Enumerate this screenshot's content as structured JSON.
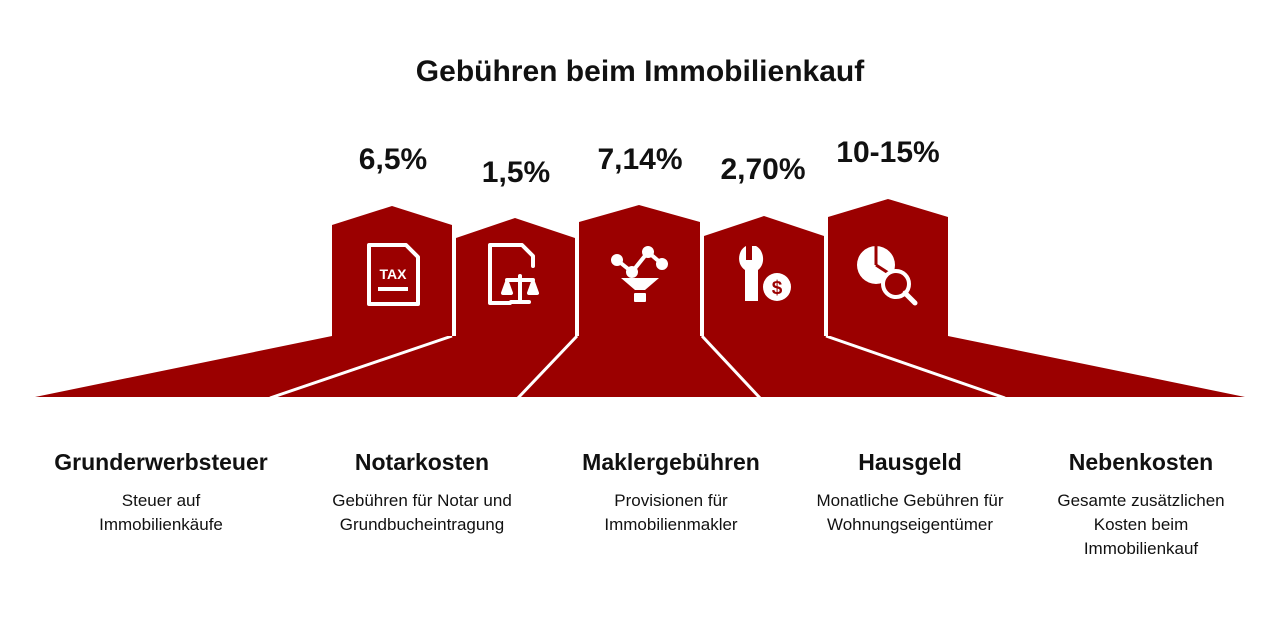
{
  "title": "Gebühren beim Immobilienkauf",
  "colors": {
    "house": "#9b0000",
    "text": "#111111",
    "divider": "#ffffff"
  },
  "items": [
    {
      "percent": "6,5%",
      "icon": "tax-document-icon",
      "name": "Grunderwerbsteuer",
      "description": "Steuer auf Immobilienkäufe"
    },
    {
      "percent": "1,5%",
      "icon": "notary-document-scales-icon",
      "name": "Notarkosten",
      "description": "Gebühren für Notar und Grundbucheintragung"
    },
    {
      "percent": "7,14%",
      "icon": "network-funnel-icon",
      "name": "Maklergebühren",
      "description": "Provisionen für Immobilienmakler"
    },
    {
      "percent": "2,70%",
      "icon": "wrench-dollar-icon",
      "name": "Hausgeld",
      "description": "Monatliche Gebühren für Wohnungseigentümer"
    },
    {
      "percent": "10-15%",
      "icon": "pie-chart-magnifier-icon",
      "name": "Nebenkosten",
      "description": "Gesamte zusätzlichen Kosten beim Immobilienkauf"
    }
  ]
}
